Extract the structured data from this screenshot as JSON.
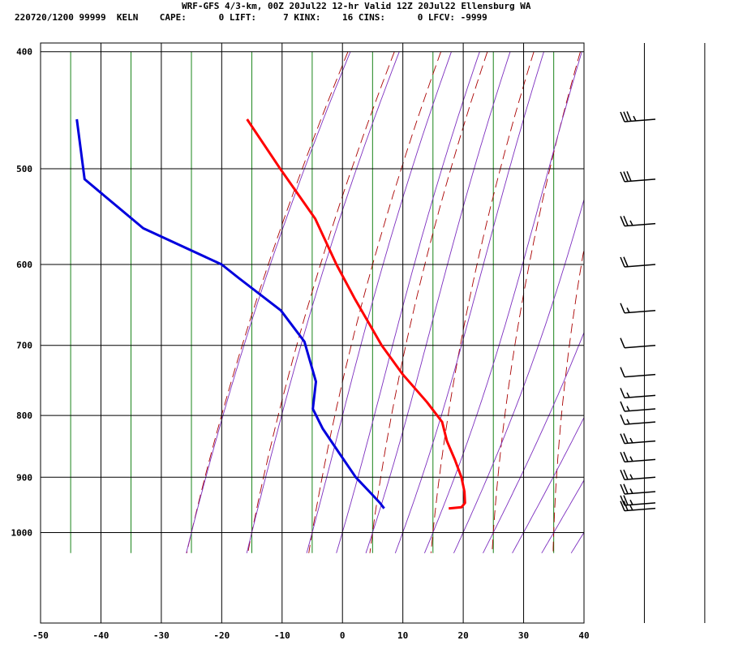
{
  "header": {
    "line1": "WRF-GFS 4/3-km, 00Z 20Jul22 12-hr Valid 12Z 20Jul22 Ellensburg WA",
    "line2": "220720/1200 99999  KELN    CAPE:      0 LIFT:     7 KINX:    16 CINS:      0 LFCV: -9999"
  },
  "colors": {
    "temperature": "#ff0000",
    "dewpoint": "#0000dd",
    "dry_adiabat": "#aa0000",
    "moist_adiabat": "#7d2fbf",
    "mixing_ratio": "#007700",
    "grid": "#000000",
    "wind_barb": "#000000"
  },
  "chart_data": {
    "type": "line",
    "title": "",
    "xlabel": "",
    "ylabel": "",
    "x_ticks": [
      -50,
      -40,
      -30,
      -20,
      -10,
      0,
      10,
      20,
      30,
      40
    ],
    "y_ticks": [
      400,
      500,
      600,
      700,
      800,
      900,
      1000
    ],
    "xlim": [
      -50,
      40
    ],
    "ylim": [
      1040,
      400
    ],
    "y_scale": "log",
    "grid": true,
    "series": [
      {
        "key": "temperature",
        "values": [
          {
            "p": 455,
            "t": -15.8
          },
          {
            "p": 500,
            "t": -10.3
          },
          {
            "p": 550,
            "t": -4.5
          },
          {
            "p": 600,
            "t": -1.0
          },
          {
            "p": 640,
            "t": 2.0
          },
          {
            "p": 700,
            "t": 6.5
          },
          {
            "p": 740,
            "t": 10.0
          },
          {
            "p": 780,
            "t": 14.0
          },
          {
            "p": 810,
            "t": 16.5
          },
          {
            "p": 840,
            "t": 17.3
          },
          {
            "p": 870,
            "t": 18.6
          },
          {
            "p": 900,
            "t": 19.7
          },
          {
            "p": 925,
            "t": 20.2
          },
          {
            "p": 945,
            "t": 20.3
          },
          {
            "p": 953,
            "t": 19.7
          },
          {
            "p": 955,
            "t": 17.6
          }
        ]
      },
      {
        "key": "dewpoint",
        "values": [
          {
            "p": 455,
            "t": -44.0
          },
          {
            "p": 510,
            "t": -42.7
          },
          {
            "p": 560,
            "t": -33.0
          },
          {
            "p": 600,
            "t": -20.0
          },
          {
            "p": 615,
            "t": -17.3
          },
          {
            "p": 655,
            "t": -10.2
          },
          {
            "p": 695,
            "t": -6.3
          },
          {
            "p": 750,
            "t": -4.4
          },
          {
            "p": 790,
            "t": -4.9
          },
          {
            "p": 820,
            "t": -3.3
          },
          {
            "p": 860,
            "t": -0.5
          },
          {
            "p": 900,
            "t": 2.2
          },
          {
            "p": 930,
            "t": 4.9
          },
          {
            "p": 945,
            "t": 6.2
          },
          {
            "p": 955,
            "t": 6.9
          }
        ]
      }
    ],
    "wind_barbs": [
      {
        "p": 455,
        "speed_kt": 35
      },
      {
        "p": 510,
        "speed_kt": 30
      },
      {
        "p": 555,
        "speed_kt": 25
      },
      {
        "p": 600,
        "speed_kt": 20
      },
      {
        "p": 655,
        "speed_kt": 15
      },
      {
        "p": 700,
        "speed_kt": 10
      },
      {
        "p": 740,
        "speed_kt": 10
      },
      {
        "p": 770,
        "speed_kt": 15
      },
      {
        "p": 790,
        "speed_kt": 15
      },
      {
        "p": 810,
        "speed_kt": 15
      },
      {
        "p": 840,
        "speed_kt": 25
      },
      {
        "p": 870,
        "speed_kt": 25
      },
      {
        "p": 900,
        "speed_kt": 25
      },
      {
        "p": 925,
        "speed_kt": 25
      },
      {
        "p": 945,
        "speed_kt": 25
      },
      {
        "p": 955,
        "speed_kt": 25
      }
    ]
  }
}
